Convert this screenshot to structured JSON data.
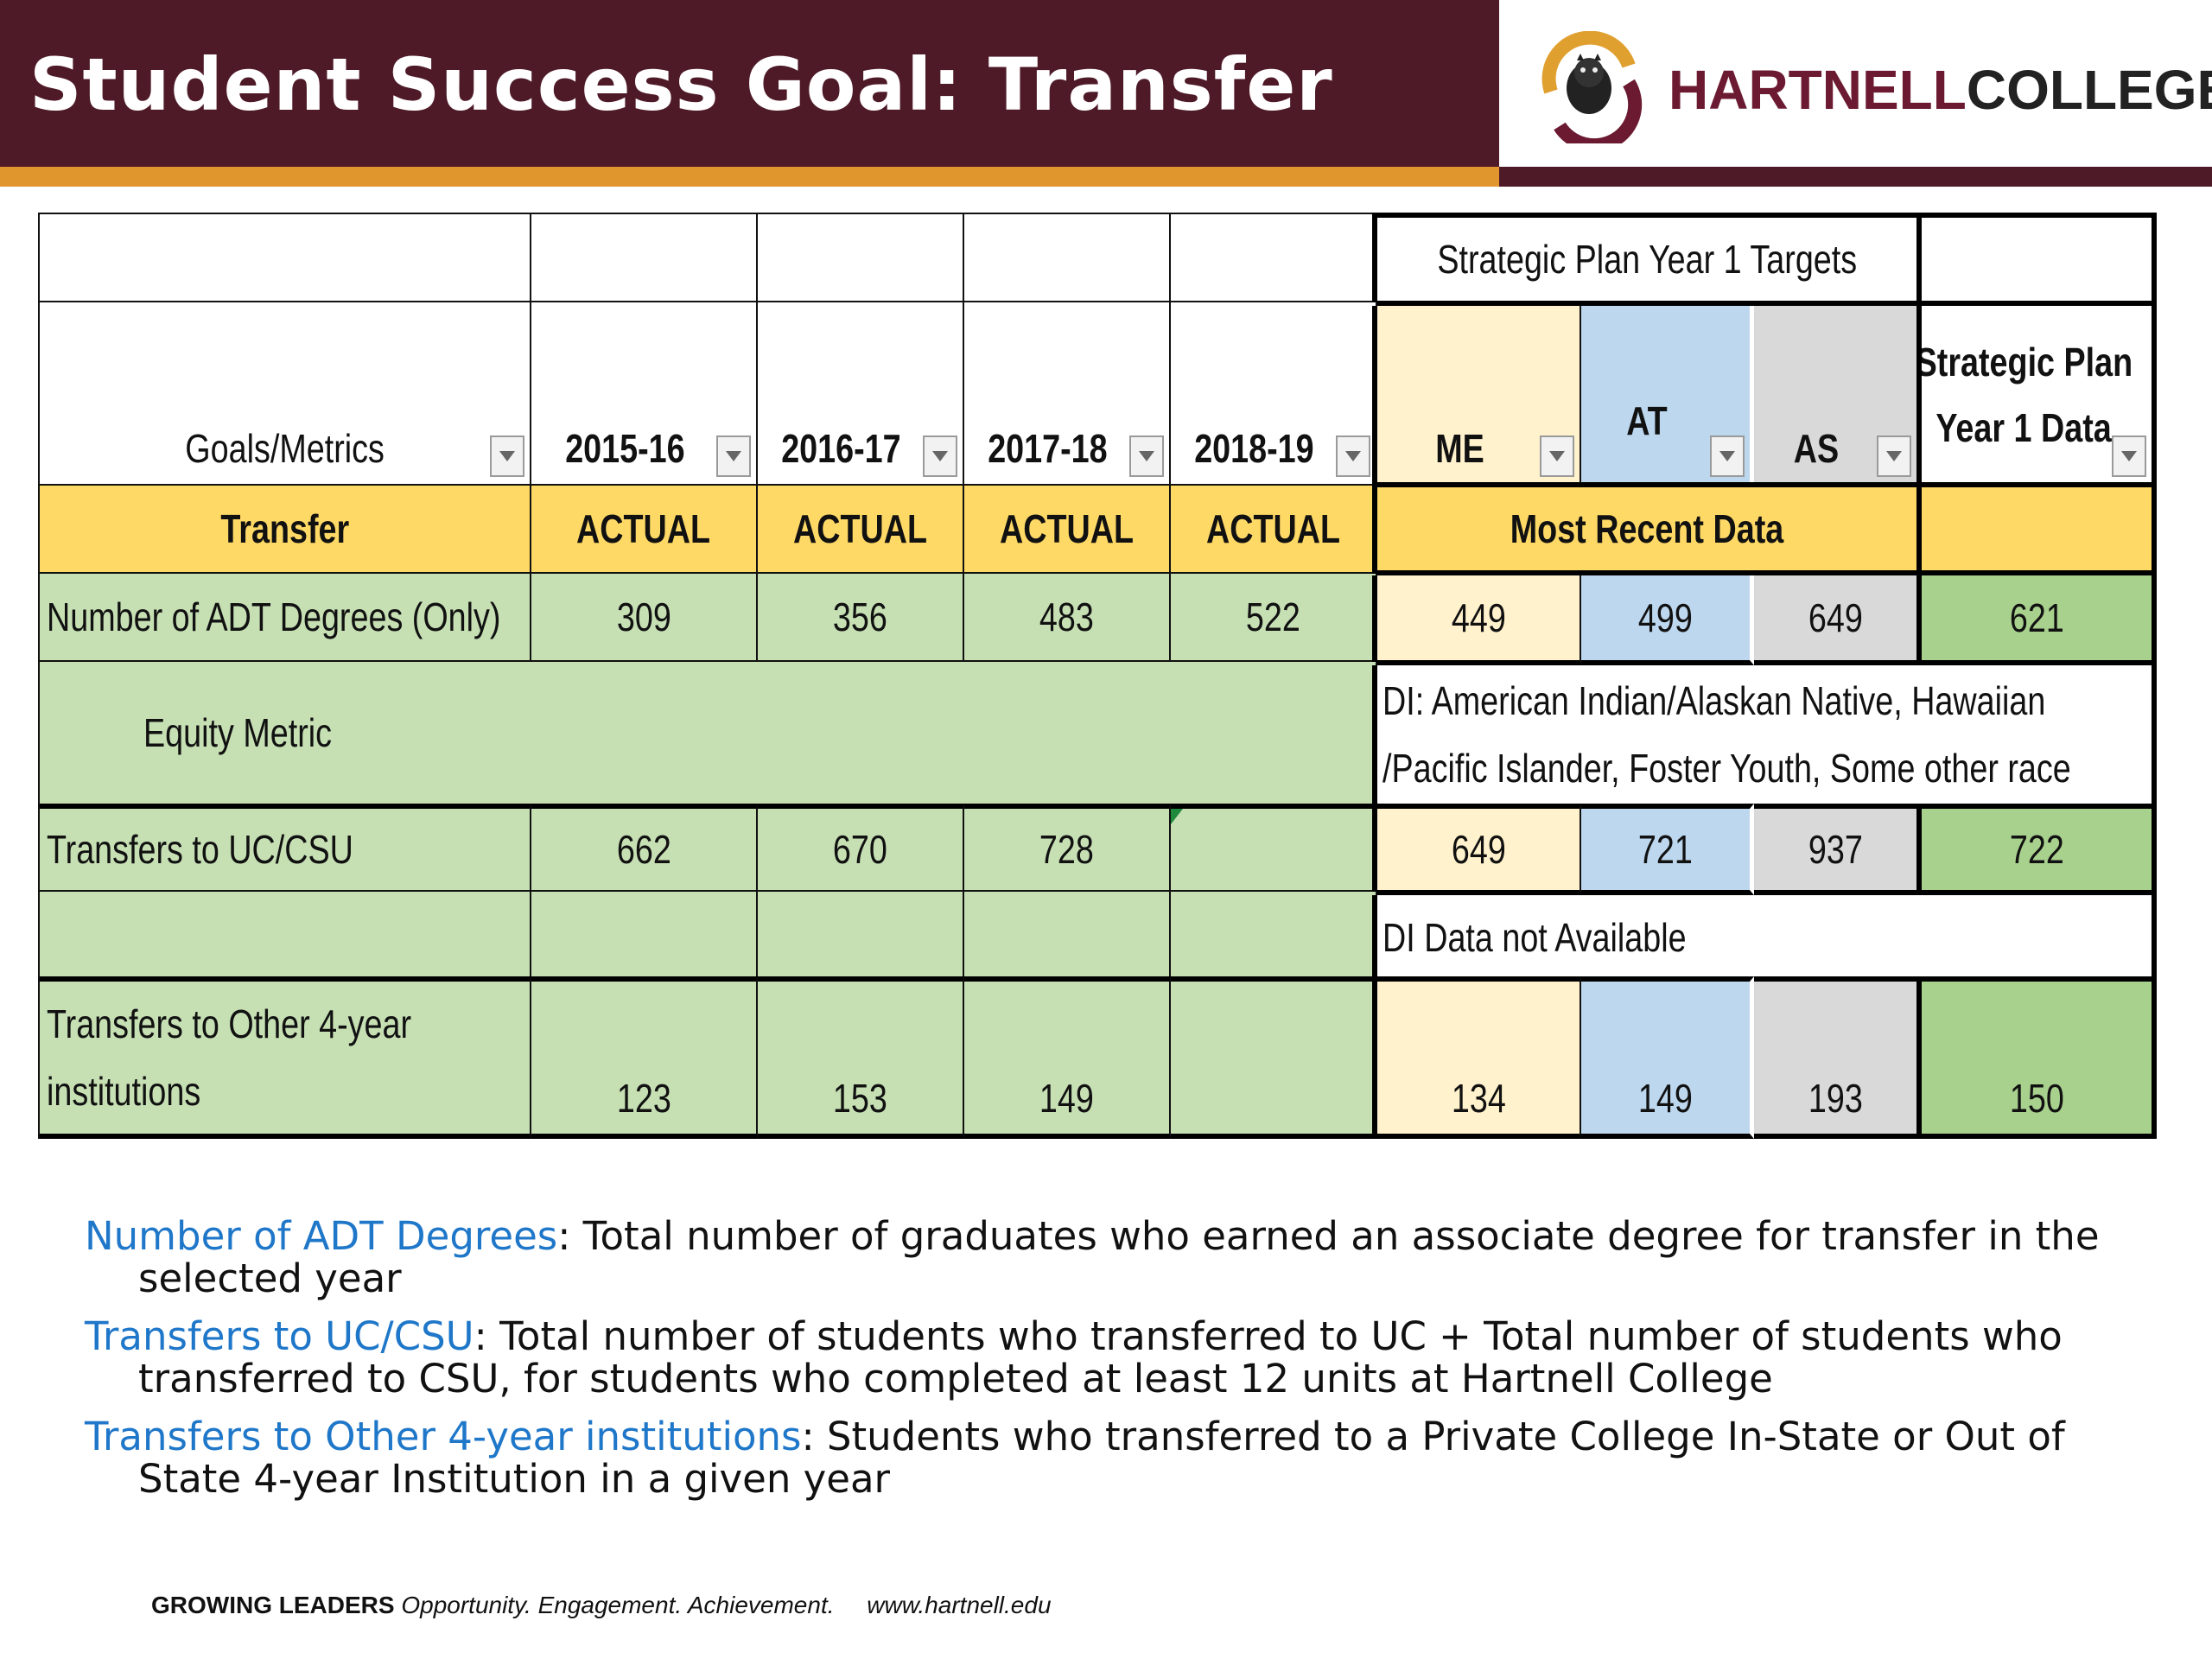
{
  "header": {
    "title": "Student Success Goal: Transfer",
    "logo_text_1": "HARTNELL",
    "logo_text_2": "COLLEGE",
    "colors": {
      "maroon": "#4e1a28",
      "gold": "#e0962c"
    }
  },
  "table": {
    "top_group_label": "Strategic Plan Year 1 Targets",
    "col_headers": {
      "metric": "Goals/Metrics",
      "y1": "2015-16",
      "y2": "2016-17",
      "y3": "2017-18",
      "y4": "2018-19",
      "me": "ME",
      "at": "AT",
      "as": "AS",
      "sp_line1": "Strategic Plan",
      "sp_line2": "Year 1 Data"
    },
    "section_row": {
      "label": "Transfer",
      "actual_1": "ACTUAL",
      "actual_2": "ACTUAL",
      "actual_3": "ACTUAL",
      "actual_4": "ACTUAL",
      "recent": "Most Recent Data"
    },
    "adt_row": {
      "label": "Number of ADT Degrees (Only)",
      "y1": "309",
      "y2": "356",
      "y3": "483",
      "y4": "522",
      "me": "449",
      "at": "499",
      "as": "649",
      "sp": "621"
    },
    "equity_row": {
      "label": "Equity Metric",
      "di_line1": "DI:  American Indian/Alaskan Native, Hawaiian",
      "di_line2": "/Pacific Islander, Foster Youth, Some other race"
    },
    "uccsu_row": {
      "label": "Transfers to UC/CSU",
      "y1": "662",
      "y2": "670",
      "y3": "728",
      "y4": "",
      "me": "649",
      "at": "721",
      "as": "937",
      "sp": "722"
    },
    "di_na_row": {
      "text": "DI Data not Available"
    },
    "other_row": {
      "label_line1": "Transfers to Other 4-year",
      "label_line2": "institutions",
      "y1": "123",
      "y2": "153",
      "y3": "149",
      "y4": "",
      "me": "134",
      "at": "149",
      "as": "193",
      "sp": "150"
    }
  },
  "definitions": [
    {
      "term": "Number of ADT Degrees",
      "text": ": Total number of graduates who earned an associate degree for transfer in the selected year"
    },
    {
      "term": "Transfers to UC/CSU",
      "text": ": Total number of students who transferred to UC + Total number of students who transferred to CSU, for students who completed at least 12 units at Hartnell College"
    },
    {
      "term": "Transfers to Other 4-year institutions",
      "text": ": Students who transferred to a Private College In-State or Out of State 4-year Institution in a given year"
    }
  ],
  "footer": {
    "brand": "GROWING LEADERS",
    "tagline": "Opportunity. Engagement. Achievement.",
    "url": "www.hartnell.edu"
  }
}
